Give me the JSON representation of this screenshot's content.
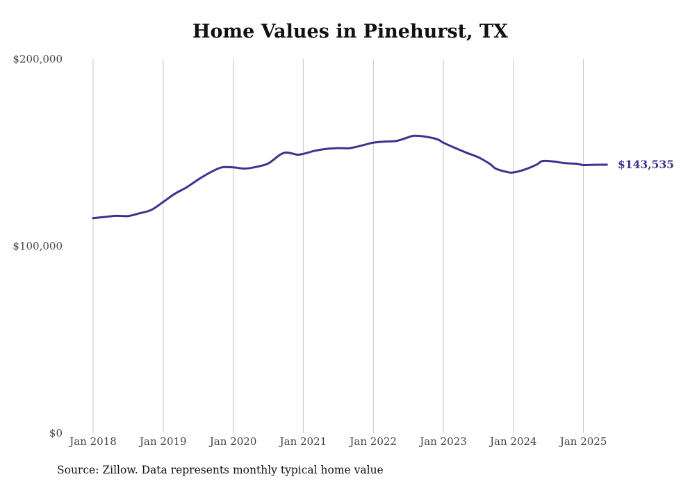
{
  "chart_data": {
    "type": "line",
    "title": "Home Values in Pinehurst, TX",
    "source": "Source: Zillow. Data represents monthly typical home value",
    "ylim": [
      0,
      200000
    ],
    "y_ticks": [
      {
        "value": 0,
        "label": "$0"
      },
      {
        "value": 100000,
        "label": "$100,000"
      },
      {
        "value": 200000,
        "label": "$200,000"
      }
    ],
    "x_ticks": [
      {
        "value": "2018-01",
        "label": "Jan 2018"
      },
      {
        "value": "2019-01",
        "label": "Jan 2019"
      },
      {
        "value": "2020-01",
        "label": "Jan 2020"
      },
      {
        "value": "2021-01",
        "label": "Jan 2021"
      },
      {
        "value": "2022-01",
        "label": "Jan 2022"
      },
      {
        "value": "2023-01",
        "label": "Jan 2023"
      },
      {
        "value": "2024-01",
        "label": "Jan 2024"
      },
      {
        "value": "2025-01",
        "label": "Jan 2025"
      }
    ],
    "x_range": [
      "2018-01",
      "2025-05"
    ],
    "grid": "vertical",
    "line_color": "#3b3490",
    "end_label": "$143,535",
    "series": [
      {
        "points": [
          [
            "2018-01",
            115000
          ],
          [
            "2018-03",
            115600
          ],
          [
            "2018-05",
            116200
          ],
          [
            "2018-07",
            116100
          ],
          [
            "2018-09",
            117600
          ],
          [
            "2018-11",
            119400
          ],
          [
            "2019-01",
            123600
          ],
          [
            "2019-03",
            128000
          ],
          [
            "2019-05",
            131400
          ],
          [
            "2019-07",
            135600
          ],
          [
            "2019-09",
            139300
          ],
          [
            "2019-11",
            142100
          ],
          [
            "2020-01",
            142100
          ],
          [
            "2020-03",
            141500
          ],
          [
            "2020-05",
            142400
          ],
          [
            "2020-07",
            144200
          ],
          [
            "2020-09",
            148800
          ],
          [
            "2020-10",
            150000
          ],
          [
            "2020-11",
            149600
          ],
          [
            "2020-12",
            148900
          ],
          [
            "2021-01",
            149300
          ],
          [
            "2021-03",
            151000
          ],
          [
            "2021-05",
            152000
          ],
          [
            "2021-07",
            152400
          ],
          [
            "2021-09",
            152400
          ],
          [
            "2021-11",
            153800
          ],
          [
            "2022-01",
            155300
          ],
          [
            "2022-03",
            155900
          ],
          [
            "2022-05",
            156300
          ],
          [
            "2022-07",
            158200
          ],
          [
            "2022-08",
            159000
          ],
          [
            "2022-10",
            158500
          ],
          [
            "2022-12",
            157100
          ],
          [
            "2023-01",
            155300
          ],
          [
            "2023-03",
            152500
          ],
          [
            "2023-05",
            149900
          ],
          [
            "2023-07",
            147500
          ],
          [
            "2023-09",
            143900
          ],
          [
            "2023-10",
            141400
          ],
          [
            "2023-12",
            139600
          ],
          [
            "2024-01",
            139400
          ],
          [
            "2024-03",
            141000
          ],
          [
            "2024-05",
            143600
          ],
          [
            "2024-06",
            145500
          ],
          [
            "2024-08",
            145200
          ],
          [
            "2024-10",
            144300
          ],
          [
            "2024-12",
            144000
          ],
          [
            "2025-01",
            143300
          ],
          [
            "2025-03",
            143500
          ],
          [
            "2025-05",
            143535
          ]
        ]
      }
    ]
  }
}
